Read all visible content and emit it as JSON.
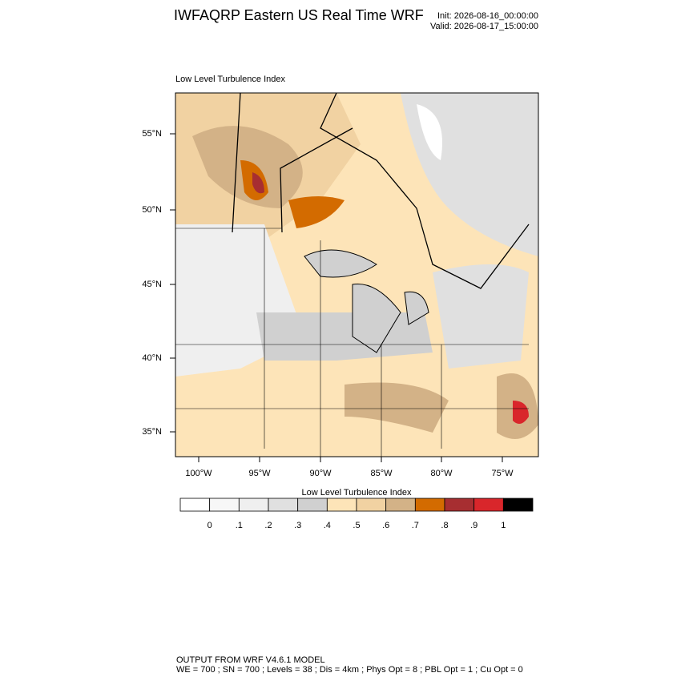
{
  "header": {
    "title": "IWFAQRP Eastern US Real Time WRF",
    "init": "Init: 2026-08-16_00:00:00",
    "valid": "Valid: 2026-08-17_15:00:00"
  },
  "map": {
    "title": "Low Level Turbulence Index",
    "lat_labels": [
      "55°N",
      "50°N",
      "45°N",
      "40°N",
      "35°N"
    ],
    "lon_labels": [
      "100°W",
      "95°W",
      "90°W",
      "85°W",
      "80°W",
      "75°W"
    ]
  },
  "colorbar": {
    "title": "Low Level Turbulence Index",
    "colors": [
      "#ffffff",
      "#f7f7f7",
      "#efefef",
      "#e0e0e0",
      "#d0d0d0",
      "#fde4b8",
      "#f1d2a2",
      "#d3b287",
      "#d36b00",
      "#a72e31",
      "#d9262b",
      "#000000"
    ],
    "labels": [
      "0",
      ".1",
      ".2",
      ".3",
      ".4",
      ".5",
      ".6",
      ".7",
      ".8",
      ".9",
      "1"
    ]
  },
  "footer": {
    "line1": "OUTPUT FROM WRF V4.6.1 MODEL",
    "line2": "WE = 700 ; SN = 700 ; Levels = 38 ; Dis = 4km ; Phys Opt = 8 ; PBL Opt = 1 ; Cu Opt = 0"
  }
}
